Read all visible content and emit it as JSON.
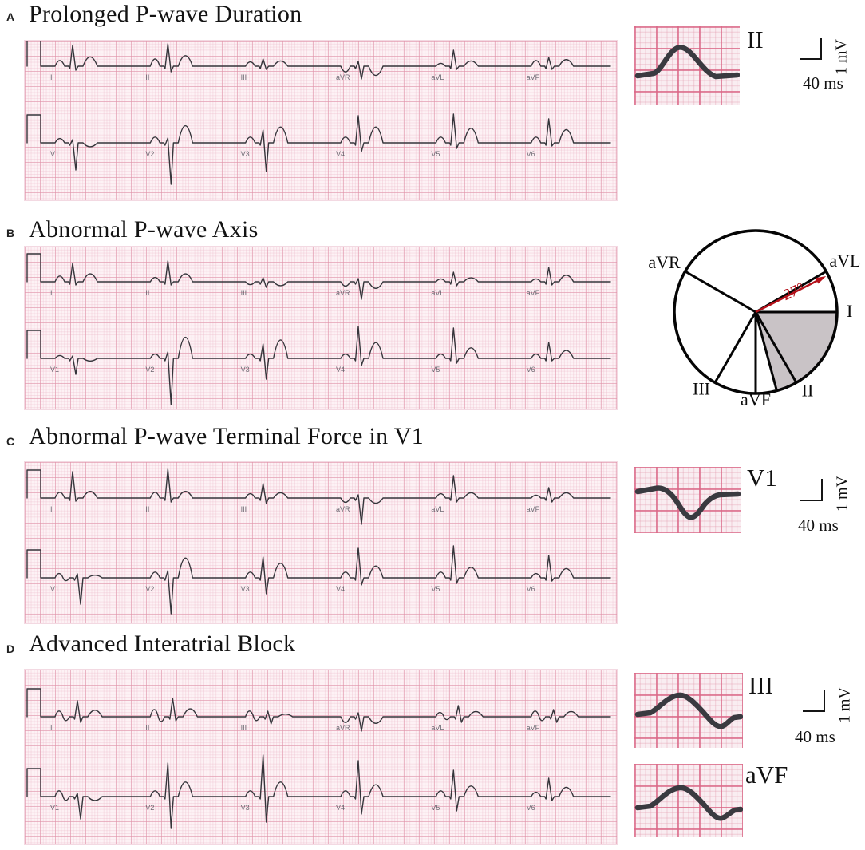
{
  "colors": {
    "paper": "#fdf2f5",
    "grid_major": "#e092a8",
    "grid_minor": "#ecbaca",
    "trace": "#35353b",
    "accent_red": "#b5121b",
    "shade_gray": "#c9c3c6",
    "ink": "#131313"
  },
  "panels": [
    {
      "label": "A",
      "title": "Prolonged P-wave Duration",
      "rows": [
        {
          "leads": [
            "I",
            "II",
            "III",
            "aVR",
            "aVL",
            "aVF"
          ],
          "morphs": [
            [
              4,
              26,
              5,
              7,
              0
            ],
            [
              5,
              28,
              7,
              8,
              0
            ],
            [
              3,
              9,
              4,
              4,
              0
            ],
            [
              -4,
              6,
              16,
              -7,
              0
            ],
            [
              2,
              20,
              4,
              4,
              0
            ],
            [
              4,
              11,
              4,
              5,
              0
            ]
          ]
        },
        {
          "leads": [
            "V1",
            "V2",
            "V3",
            "V4",
            "V5",
            "V6"
          ],
          "morphs": [
            [
              3,
              4,
              34,
              -3,
              0
            ],
            [
              4,
              6,
              52,
              13,
              0
            ],
            [
              4,
              16,
              36,
              12,
              0
            ],
            [
              4,
              34,
              11,
              12,
              0
            ],
            [
              4,
              36,
              7,
              11,
              0
            ],
            [
              4,
              30,
              4,
              10,
              0
            ]
          ]
        }
      ],
      "inset": {
        "lead": "II",
        "voltage_scale": "1 mV",
        "time_scale": "40 ms"
      }
    },
    {
      "label": "B",
      "title": "Abnormal P-wave Axis",
      "rows": [
        {
          "leads": [
            "I",
            "II",
            "III",
            "aVR",
            "aVL",
            "aVF"
          ],
          "morphs": [
            [
              4,
              23,
              4,
              6,
              0
            ],
            [
              3,
              26,
              4,
              6,
              0
            ],
            [
              -2,
              5,
              7,
              -3,
              0
            ],
            [
              -3,
              4,
              22,
              -5,
              0
            ],
            [
              2,
              12,
              5,
              3,
              0
            ],
            [
              2,
              18,
              4,
              5,
              0
            ]
          ]
        },
        {
          "leads": [
            "V1",
            "V2",
            "V3",
            "V4",
            "V5",
            "V6"
          ],
          "morphs": [
            [
              2,
              3,
              20,
              -2,
              0
            ],
            [
              3,
              8,
              58,
              16,
              0
            ],
            [
              3,
              18,
              26,
              14,
              0
            ],
            [
              3,
              40,
              9,
              12,
              0
            ],
            [
              3,
              38,
              6,
              8,
              0
            ],
            [
              3,
              20,
              3,
              6,
              0
            ]
          ]
        }
      ],
      "axis_diagram": {
        "labels": [
          {
            "text": "aVR",
            "deg": -150
          },
          {
            "text": "aVL",
            "deg": -30
          },
          {
            "text": "I",
            "deg": 0
          },
          {
            "text": "II",
            "deg": 60
          },
          {
            "text": "aVF",
            "deg": 90
          },
          {
            "text": "III",
            "deg": 120
          }
        ],
        "extra_spoke_deg": 75,
        "shaded_sector_deg": [
          0,
          75
        ],
        "p_axis_deg": -27,
        "angle_label": "-27°"
      }
    },
    {
      "label": "C",
      "title": "Abnormal P-wave Terminal Force in V1",
      "rows": [
        {
          "leads": [
            "I",
            "II",
            "III",
            "aVR",
            "aVL",
            "aVF"
          ],
          "morphs": [
            [
              4,
              33,
              4,
              5,
              0
            ],
            [
              4,
              36,
              5,
              5,
              0
            ],
            [
              3,
              18,
              7,
              4,
              0
            ],
            [
              -3,
              4,
              33,
              -4,
              0
            ],
            [
              3,
              28,
              5,
              4,
              0
            ],
            [
              2,
              13,
              5,
              4,
              0
            ]
          ]
        },
        {
          "leads": [
            "V1",
            "V2",
            "V3",
            "V4",
            "V5",
            "V6"
          ],
          "morphs": [
            [
              3,
              5,
              33,
              2,
              1
            ],
            [
              4,
              9,
              45,
              15,
              0
            ],
            [
              4,
              26,
              20,
              11,
              0
            ],
            [
              4,
              38,
              9,
              9,
              0
            ],
            [
              4,
              40,
              7,
              8,
              0
            ],
            [
              3,
              28,
              4,
              7,
              0
            ]
          ]
        }
      ],
      "inset": {
        "lead": "V1",
        "voltage_scale": "1 mV",
        "time_scale": "40 ms"
      }
    },
    {
      "label": "D",
      "title": "Advanced Interatrial Block",
      "rows": [
        {
          "leads": [
            "I",
            "II",
            "III",
            "aVR",
            "aVL",
            "aVF"
          ],
          "morphs": [
            [
              4,
              20,
              7,
              5,
              1
            ],
            [
              5,
              23,
              5,
              6,
              1
            ],
            [
              4,
              7,
              9,
              2,
              1
            ],
            [
              -4,
              5,
              18,
              -5,
              0
            ],
            [
              3,
              14,
              7,
              4,
              1
            ],
            [
              4,
              9,
              7,
              4,
              1
            ]
          ]
        },
        {
          "leads": [
            "V1",
            "V2",
            "V3",
            "V4",
            "V5",
            "V6"
          ],
          "morphs": [
            [
              4,
              4,
              28,
              -3,
              1
            ],
            [
              4,
              42,
              40,
              11,
              0
            ],
            [
              4,
              52,
              32,
              11,
              0
            ],
            [
              4,
              45,
              22,
              9,
              0
            ],
            [
              4,
              33,
              18,
              8,
              0
            ],
            [
              3,
              23,
              5,
              7,
              0
            ]
          ]
        }
      ],
      "insets": [
        {
          "lead": "III",
          "voltage_scale": "1 mV",
          "time_scale": "40 ms"
        },
        {
          "lead": "aVF"
        }
      ]
    }
  ]
}
